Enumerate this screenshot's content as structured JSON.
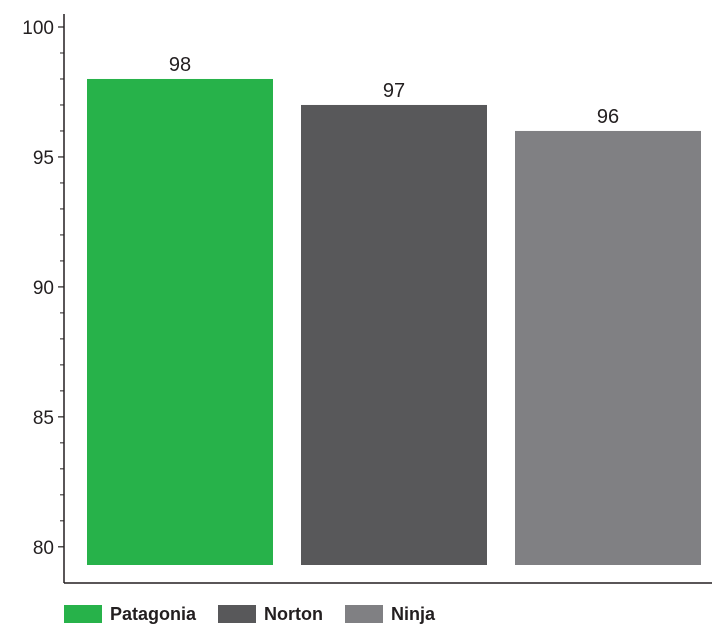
{
  "chart_data": {
    "type": "bar",
    "categories": [
      "Patagonia",
      "Norton",
      "Ninja"
    ],
    "values": [
      98,
      97,
      96
    ],
    "colors": [
      "#27b24a",
      "#58585a",
      "#808083"
    ],
    "ylim": [
      79.3,
      100.5
    ],
    "yticks": [
      80,
      85,
      90,
      95,
      100
    ],
    "data_labels": [
      "98",
      "97",
      "96"
    ],
    "legend": [
      "Patagonia",
      "Norton",
      "Ninja"
    ],
    "legend_position": "bottom-left",
    "grid": false
  }
}
